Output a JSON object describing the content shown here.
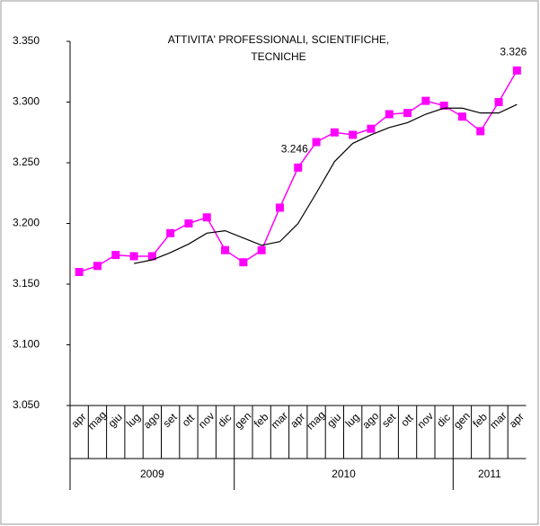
{
  "chart_data": {
    "type": "line",
    "title": [
      "ATTIVITA' PROFESSIONALI, SCIENTIFICHE,",
      "TECNICHE"
    ],
    "category_groups": [
      {
        "label": "2009",
        "categories": [
          "apr",
          "mag",
          "giu",
          "lug",
          "ago",
          "set",
          "ott",
          "nov",
          "dic"
        ]
      },
      {
        "label": "2010",
        "categories": [
          "gen",
          "feb",
          "mar",
          "apr",
          "mag",
          "giu",
          "lug",
          "ago",
          "set",
          "ott",
          "nov",
          "dic"
        ]
      },
      {
        "label": "2011",
        "categories": [
          "gen",
          "feb",
          "mar",
          "apr"
        ]
      }
    ],
    "series": [
      {
        "color": "#ff00ff",
        "marker": "square",
        "values": [
          3160,
          3165,
          3174,
          3173,
          3173,
          3192,
          3200,
          3205,
          3178,
          3168,
          3178,
          3213,
          3246,
          3267,
          3275,
          3273,
          3278,
          3290,
          3291,
          3301,
          3297,
          3288,
          3276,
          3300,
          3326
        ],
        "value_labels": [
          null,
          null,
          null,
          null,
          null,
          null,
          null,
          null,
          null,
          null,
          null,
          null,
          "3.246",
          null,
          null,
          null,
          null,
          null,
          null,
          null,
          null,
          null,
          null,
          null,
          "3.326"
        ]
      },
      {
        "color": "#000000",
        "values": [
          null,
          null,
          null,
          3167,
          3170,
          3176,
          3183,
          3192,
          3194,
          3188,
          3182,
          3185,
          3200,
          3225,
          3251,
          3266,
          3273,
          3279,
          3283,
          3290,
          3295,
          3295,
          3291,
          3291,
          3298
        ]
      }
    ],
    "ylim": [
      3050,
      3350
    ],
    "yticks": [
      {
        "value": 3050,
        "label": "3.050"
      },
      {
        "value": 3100,
        "label": "3.100"
      },
      {
        "value": 3150,
        "label": "3.150"
      },
      {
        "value": 3200,
        "label": "3.200"
      },
      {
        "value": 3250,
        "label": "3.250"
      },
      {
        "value": 3300,
        "label": "3.300"
      },
      {
        "value": 3350,
        "label": "3.350"
      }
    ]
  }
}
